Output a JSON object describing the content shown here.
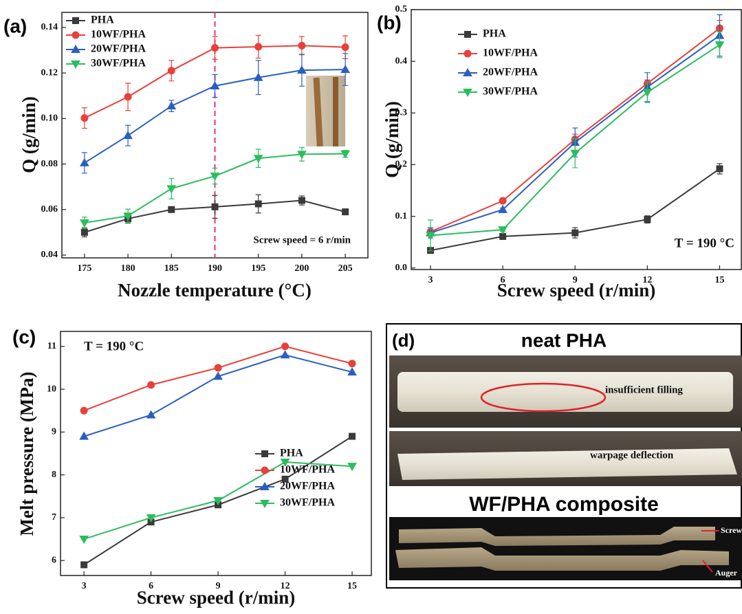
{
  "chart_data": [
    {
      "type": "line",
      "label": "(a)",
      "xlabel": "Nozzle temperature (°C)",
      "ylabel": "Q (g/min)",
      "annotation": "Screw speed = 6 r/min",
      "vline": 190,
      "legend": "upper left",
      "x": [
        175,
        180,
        185,
        190,
        195,
        200,
        205
      ],
      "xlim": [
        172.4,
        207.6
      ],
      "xticks": [
        175,
        180,
        185,
        190,
        195,
        200,
        205
      ],
      "ylim": [
        0.0388,
        0.1466
      ],
      "yticks": [
        0.04,
        0.06,
        0.08,
        {
          "value": 0.1,
          "label": "0.10"
        },
        0.12,
        0.14
      ],
      "series": [
        {
          "name": "PHA",
          "color": "#3a3a3a",
          "marker": "square",
          "values": [
            0.05,
            0.056,
            0.06,
            0.0612,
            0.0625,
            0.064,
            0.059
          ],
          "errors": [
            0.002,
            0.002,
            0.001,
            0.005,
            0.004,
            0.002,
            0.001
          ]
        },
        {
          "name": "10WF/PHA",
          "color": "#e8403a",
          "marker": "circle",
          "values": [
            0.1002,
            0.1095,
            0.121,
            0.131,
            0.1315,
            0.132,
            0.1313
          ],
          "errors": [
            0.0045,
            0.006,
            0.0045,
            0.005,
            0.005,
            0.004,
            0.005
          ]
        },
        {
          "name": "20WF/PHA",
          "color": "#2a5fc1",
          "marker": "triangle-up",
          "values": [
            0.0805,
            0.0925,
            0.1055,
            0.1143,
            0.118,
            0.1212,
            0.1215
          ],
          "errors": [
            0.0045,
            0.0045,
            0.0025,
            0.005,
            0.0075,
            0.007,
            0.007
          ]
        },
        {
          "name": "30WF/PHA",
          "color": "#2bbd5e",
          "marker": "triangle-down",
          "values": [
            0.0542,
            0.0572,
            0.0692,
            0.0747,
            0.0825,
            0.0843,
            0.0845
          ],
          "errors": [
            0.0025,
            0.003,
            0.0045,
            0.0035,
            0.004,
            0.003,
            0.0015
          ]
        }
      ]
    },
    {
      "type": "line",
      "label": "(b)",
      "xlabel": "Screw speed (r/min)",
      "ylabel": "Q (g/min)",
      "annotation": "T = 190 °C",
      "legend": "upper left",
      "x": [
        3,
        6,
        9,
        12,
        15
      ],
      "xlim": [
        2.2,
        15.9
      ],
      "xticks": [
        3,
        6,
        9,
        12,
        15
      ],
      "ylim": [
        -0.003,
        0.5
      ],
      "yticks": [
        {
          "value": 0,
          "label": "0.0"
        },
        0.1,
        0.2,
        0.3,
        0.4,
        0.5
      ],
      "series": [
        {
          "name": "PHA",
          "color": "#3a3a3a",
          "marker": "square",
          "values": [
            0.034,
            0.061,
            0.068,
            0.094,
            0.192
          ],
          "errors": [
            0.005,
            0.003,
            0.01,
            0.007,
            0.01
          ]
        },
        {
          "name": "10WF/PHA",
          "color": "#e8403a",
          "marker": "circle",
          "values": [
            0.07,
            0.13,
            0.249,
            0.357,
            0.464
          ],
          "errors": [
            0.008,
            0.003,
            0.01,
            0.007,
            0.015
          ]
        },
        {
          "name": "20WF/PHA",
          "color": "#2a5fc1",
          "marker": "triangle-up",
          "values": [
            0.068,
            0.113,
            0.243,
            0.35,
            0.45
          ],
          "errors": [
            0.01,
            0.003,
            0.028,
            0.028,
            0.04
          ]
        },
        {
          "name": "30WF/PHA",
          "color": "#2bbd5e",
          "marker": "triangle-down",
          "values": [
            0.063,
            0.074,
            0.222,
            0.34,
            0.432
          ],
          "errors": [
            0.03,
            0.003,
            0.028,
            0.02,
            0.025
          ]
        }
      ]
    },
    {
      "type": "line",
      "label": "(c)",
      "xlabel": "Screw speed (r/min)",
      "ylabel": "Melt pressure (MPa)",
      "annotation": "T = 190 °C",
      "legend": "lower right",
      "x": [
        3,
        6,
        9,
        12,
        15
      ],
      "xlim": [
        1.95,
        15.86
      ],
      "xticks": [
        3,
        6,
        9,
        12,
        15
      ],
      "ylim": [
        5.65,
        11.35
      ],
      "yticks": [
        6,
        7,
        8,
        9,
        10,
        11
      ],
      "series": [
        {
          "name": "PHA",
          "color": "#3a3a3a",
          "marker": "square",
          "values": [
            5.9,
            6.9,
            7.3,
            7.9,
            8.9
          ]
        },
        {
          "name": "10WF/PHA",
          "color": "#e8403a",
          "marker": "circle",
          "values": [
            9.5,
            10.1,
            10.5,
            11.0,
            10.6
          ]
        },
        {
          "name": "20WF/PHA",
          "color": "#2a5fc1",
          "marker": "triangle-up",
          "values": [
            8.9,
            9.4,
            10.3,
            10.8,
            10.4
          ]
        },
        {
          "name": "30WF/PHA",
          "color": "#2bbd5e",
          "marker": "triangle-down",
          "values": [
            6.5,
            7.0,
            7.4,
            8.3,
            8.2
          ]
        }
      ]
    }
  ],
  "photo_panel": {
    "label": "(d)",
    "sections": [
      {
        "title": "neat PHA",
        "annotations": [
          "insufficient filling",
          "warpage deflection"
        ]
      },
      {
        "title": "WF/PHA composite",
        "annotations": [
          "Screw",
          "Auger"
        ]
      }
    ]
  }
}
